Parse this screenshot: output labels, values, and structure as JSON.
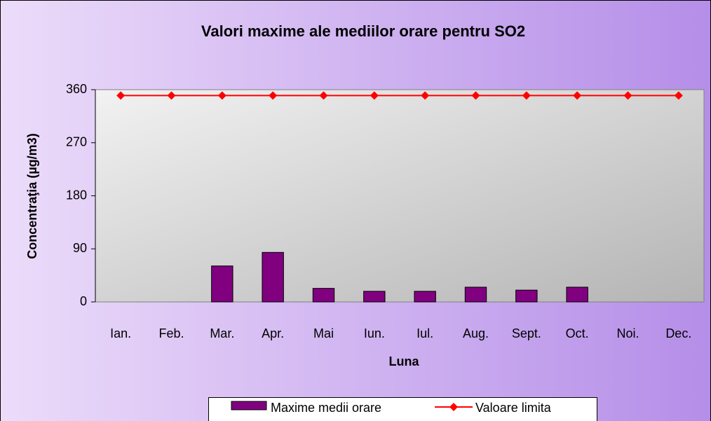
{
  "chart_data": {
    "type": "bar",
    "title": "Valori maxime ale mediilor orare pentru SO2",
    "x_label": "Luna",
    "y_label": "Concentraţia  (µg/m3)",
    "categories": [
      "Ian.",
      "Feb.",
      "Mar.",
      "Apr.",
      "Mai",
      "Iun.",
      "Iul.",
      "Aug.",
      "Sept.",
      "Oct.",
      "Noi.",
      "Dec."
    ],
    "series": [
      {
        "name": "Maxime medii orare",
        "type": "bar",
        "color": "#800080",
        "values": [
          null,
          null,
          61,
          84,
          23,
          18,
          18,
          25,
          20,
          25,
          null,
          null
        ]
      },
      {
        "name": "Valoare limita",
        "type": "line",
        "color": "#ff0000",
        "values": [
          350,
          350,
          350,
          350,
          350,
          350,
          350,
          350,
          350,
          350,
          350,
          350
        ]
      }
    ],
    "ylim": [
      0,
      360
    ],
    "yticks": [
      0,
      90,
      180,
      270,
      360
    ],
    "legend": "bottom"
  }
}
